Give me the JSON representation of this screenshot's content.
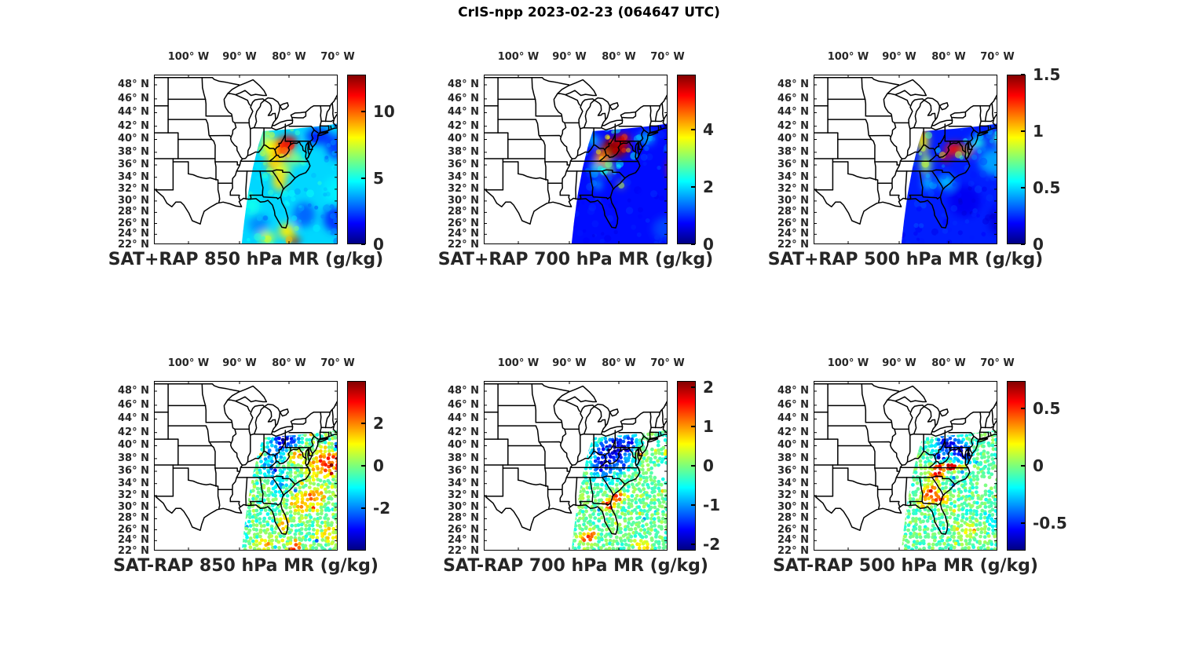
{
  "figure_title": "CrIS-npp 2023-02-23 (064647 UTC)",
  "axes_labels": {
    "lon": [
      "100° W",
      "90° W",
      "80° W",
      "70° W"
    ],
    "lat": [
      "48° N",
      "46° N",
      "44° N",
      "42° N",
      "40° N",
      "38° N",
      "36° N",
      "34° N",
      "32° N",
      "30° N",
      "28° N",
      "26° N",
      "24° N",
      "22° N"
    ],
    "lat_values": [
      48,
      46,
      44,
      42,
      40,
      38,
      36,
      34,
      32,
      30,
      28,
      26,
      24,
      22
    ]
  },
  "colors": {
    "colormap": "jet",
    "map_outline": "#000000",
    "background": "#ffffff",
    "text": "#262626"
  },
  "chart_data": [
    {
      "type": "heatmap",
      "id": "sat_plus_rap_850",
      "title": "SAT+RAP 850 hPa MR (g/kg)",
      "mode": "filled",
      "region": {
        "lon_range_w": [
          106.9,
          70.0
        ],
        "lat_range_n": [
          22,
          49.5
        ]
      },
      "colorbar": {
        "min": 0,
        "max": 12.8,
        "ticks": [
          {
            "value": 0,
            "label": "0"
          },
          {
            "value": 5,
            "label": "5"
          },
          {
            "value": 10,
            "label": "10"
          }
        ]
      },
      "field": {
        "base": 4.3,
        "noise": 1.0,
        "features": [
          [
            -81.4,
            38.6,
            2.4,
            1.7,
            10.6
          ],
          [
            -79.8,
            39.6,
            1.6,
            1.0,
            11.6
          ],
          [
            -83.9,
            38.9,
            1.5,
            1.6,
            7.8
          ],
          [
            -82.5,
            36.3,
            1.8,
            1.4,
            8.6
          ],
          [
            -80.9,
            35.2,
            1.4,
            1.2,
            7.2
          ],
          [
            -81.7,
            33.5,
            1.3,
            1.7,
            8.4
          ],
          [
            -84.8,
            40.8,
            1.2,
            0.9,
            6.2
          ],
          [
            -78.5,
            37.0,
            1.5,
            1.0,
            6.4
          ],
          [
            -73.8,
            40.5,
            2.6,
            1.4,
            2.2
          ],
          [
            -69.6,
            38.8,
            2.8,
            2.0,
            2.4
          ],
          [
            -66.2,
            35.2,
            2.2,
            2.6,
            7.8
          ],
          [
            -64.5,
            38.5,
            1.8,
            1.8,
            4.8
          ],
          [
            -70.3,
            31.8,
            2.4,
            2.2,
            4.6
          ],
          [
            -70.3,
            26.8,
            2.6,
            2.2,
            2.3
          ],
          [
            -76.7,
            27.6,
            2.2,
            2.0,
            2.9
          ],
          [
            -80.2,
            24.6,
            1.6,
            1.2,
            8.2
          ],
          [
            -78.7,
            22.8,
            1.0,
            0.8,
            12.2
          ],
          [
            -84.2,
            23.4,
            1.6,
            1.0,
            7.2
          ],
          [
            -87.2,
            29.2,
            1.6,
            1.6,
            5.0
          ],
          [
            -85.9,
            25.9,
            2.0,
            1.6,
            3.4
          ]
        ],
        "gaps": []
      }
    },
    {
      "type": "heatmap",
      "id": "sat_plus_rap_700",
      "title": "SAT+RAP 700 hPa MR (g/kg)",
      "mode": "filled",
      "region": {
        "lon_range_w": [
          106.9,
          70.0
        ],
        "lat_range_n": [
          22,
          49.5
        ]
      },
      "colorbar": {
        "min": 0,
        "max": 5.9,
        "ticks": [
          {
            "value": 0,
            "label": "0"
          },
          {
            "value": 2,
            "label": "2"
          },
          {
            "value": 4,
            "label": "4"
          }
        ]
      },
      "field": {
        "base": 0.8,
        "noise": 0.22,
        "features": [
          [
            -80.7,
            38.7,
            2.8,
            1.6,
            5.8
          ],
          [
            -79.0,
            39.9,
            1.5,
            0.9,
            5.4
          ],
          [
            -83.2,
            37.1,
            1.5,
            1.1,
            4.4
          ],
          [
            -81.9,
            35.4,
            1.1,
            0.9,
            3.0
          ],
          [
            -84.5,
            35.4,
            0.9,
            0.9,
            2.3
          ],
          [
            -85.0,
            39.9,
            0.9,
            0.9,
            2.2
          ],
          [
            -84.0,
            32.8,
            0.8,
            0.8,
            1.8
          ],
          [
            -79.4,
            32.8,
            0.55,
            0.5,
            3.4
          ],
          [
            -68.4,
            35.4,
            1.4,
            2.0,
            5.0
          ],
          [
            -66.9,
            38.0,
            1.1,
            1.3,
            2.8
          ],
          [
            -65.2,
            41.6,
            1.6,
            1.1,
            2.5
          ],
          [
            -74.2,
            40.2,
            1.6,
            1.0,
            1.7
          ],
          [
            -70.0,
            25.0,
            3.0,
            2.0,
            1.1
          ]
        ],
        "gaps": []
      }
    },
    {
      "type": "heatmap",
      "id": "sat_plus_rap_500",
      "title": "SAT+RAP 500 hPa MR (g/kg)",
      "mode": "filled",
      "region": {
        "lon_range_w": [
          106.9,
          70.0
        ],
        "lat_range_n": [
          22,
          49.5
        ]
      },
      "colorbar": {
        "min": 0,
        "max": 1.5,
        "ticks": [
          {
            "value": 0,
            "label": "0"
          },
          {
            "value": 0.5,
            "label": "0.5"
          },
          {
            "value": 1,
            "label": "1"
          },
          {
            "value": 1.5,
            "label": "1.5"
          }
        ]
      },
      "field": {
        "base": 0.23,
        "noise": 0.08,
        "features": [
          [
            -85.0,
            39.8,
            1.1,
            1.9,
            0.95
          ],
          [
            -85.5,
            41.2,
            0.9,
            0.7,
            1.1
          ],
          [
            -84.4,
            36.2,
            1.0,
            1.7,
            0.8
          ],
          [
            -84.0,
            33.0,
            0.9,
            1.1,
            0.5
          ],
          [
            -78.8,
            38.5,
            1.7,
            1.0,
            1.3
          ],
          [
            -77.4,
            38.9,
            0.9,
            0.6,
            1.45
          ],
          [
            -80.4,
            37.1,
            0.9,
            0.6,
            1.35
          ],
          [
            -76.0,
            38.1,
            1.1,
            0.7,
            1.05
          ],
          [
            -74.0,
            39.5,
            1.5,
            0.9,
            0.6
          ],
          [
            -66.4,
            40.9,
            1.3,
            0.9,
            1.25
          ],
          [
            -68.8,
            40.2,
            2.2,
            1.1,
            0.65
          ],
          [
            -70.5,
            36.5,
            3.2,
            2.2,
            0.42
          ],
          [
            -80.3,
            33.2,
            1.6,
            1.1,
            0.48
          ],
          [
            -76.5,
            30.0,
            3.2,
            2.6,
            0.17
          ],
          [
            -68.5,
            26.5,
            3.2,
            2.6,
            0.14
          ]
        ],
        "gaps": []
      }
    },
    {
      "type": "heatmap",
      "id": "sat_minus_rap_850",
      "title": "SAT-RAP 850 hPa MR (g/kg)",
      "mode": "scatter",
      "region": {
        "lon_range_w": [
          106.9,
          70.0
        ],
        "lat_range_n": [
          22,
          49.5
        ]
      },
      "colorbar": {
        "min": -4,
        "max": 4,
        "ticks": [
          {
            "value": -2,
            "label": "-2"
          },
          {
            "value": 0,
            "label": "0"
          },
          {
            "value": 2,
            "label": "2"
          }
        ]
      },
      "field": {
        "base": -0.25,
        "noise": 0.75,
        "features": [
          [
            -80.4,
            40.6,
            1.7,
            1.1,
            -3.7
          ],
          [
            -82.6,
            39.4,
            1.3,
            0.9,
            -2.4
          ],
          [
            -83.6,
            36.6,
            1.3,
            1.6,
            -1.6
          ],
          [
            -81.6,
            34.2,
            1.1,
            1.3,
            -1.4
          ],
          [
            -78.2,
            38.6,
            1.0,
            0.8,
            2.4
          ],
          [
            -72.6,
            37.2,
            2.2,
            1.6,
            2.5
          ],
          [
            -69.6,
            37.7,
            1.6,
            1.1,
            2.9
          ],
          [
            -69.9,
            39.7,
            0.6,
            0.5,
            -3.6
          ],
          [
            -74.7,
            31.7,
            1.6,
            1.3,
            2.2
          ],
          [
            -77.7,
            30.6,
            1.3,
            1.1,
            2.0
          ],
          [
            -80.8,
            27.3,
            0.7,
            0.9,
            2.6
          ],
          [
            -78.6,
            22.8,
            0.9,
            0.7,
            3.4
          ],
          [
            -84.6,
            23.1,
            1.3,
            0.9,
            1.6
          ],
          [
            -71.2,
            25.2,
            2.2,
            1.6,
            0.9
          ]
        ],
        "gaps": [
          [
            -66.6,
            42.9,
            2.6,
            1.1
          ],
          [
            -63.8,
            36.5,
            1.4,
            1.2
          ]
        ]
      }
    },
    {
      "type": "heatmap",
      "id": "sat_minus_rap_700",
      "title": "SAT-RAP 700 hPa MR (g/kg)",
      "mode": "scatter",
      "region": {
        "lon_range_w": [
          106.9,
          70.0
        ],
        "lat_range_n": [
          22,
          49.5
        ]
      },
      "colorbar": {
        "min": -2.15,
        "max": 2.15,
        "ticks": [
          {
            "value": -2,
            "label": "-2"
          },
          {
            "value": -1,
            "label": "-1"
          },
          {
            "value": 0,
            "label": "0"
          },
          {
            "value": 1,
            "label": "1"
          },
          {
            "value": 2,
            "label": "2"
          }
        ]
      },
      "field": {
        "base": -0.12,
        "noise": 0.32,
        "features": [
          [
            -80.4,
            39.4,
            2.4,
            1.4,
            -2.05
          ],
          [
            -82.9,
            37.1,
            1.4,
            1.6,
            -1.8
          ],
          [
            -79.1,
            37.1,
            1.1,
            0.9,
            -1.3
          ],
          [
            -77.8,
            40.3,
            1.0,
            0.7,
            -1.6
          ],
          [
            -65.6,
            39.6,
            2.2,
            1.6,
            -1.95
          ],
          [
            -75.5,
            38.9,
            0.6,
            0.45,
            1.2
          ],
          [
            -80.0,
            31.7,
            0.9,
            0.55,
            1.85
          ],
          [
            -81.9,
            30.3,
            0.9,
            0.55,
            1.95
          ],
          [
            -86.1,
            24.4,
            1.0,
            0.55,
            1.7
          ],
          [
            -85.1,
            25.6,
            0.7,
            0.45,
            1.3
          ],
          [
            -65.9,
            30.6,
            0.8,
            0.8,
            1.5
          ],
          [
            -64.6,
            24.1,
            1.1,
            0.7,
            1.0
          ],
          [
            -74.9,
            22.9,
            1.3,
            0.7,
            0.8
          ]
        ],
        "gaps": [
          [
            -70.3,
            35.6,
            2.8,
            1.4
          ],
          [
            -66.2,
            34.2,
            2.2,
            1.6
          ],
          [
            -72.3,
            40.5,
            1.6,
            0.9
          ],
          [
            -64.0,
            43.0,
            2.0,
            0.8
          ]
        ]
      }
    },
    {
      "type": "heatmap",
      "id": "sat_minus_rap_500",
      "title": "SAT-RAP 500 hPa MR (g/kg)",
      "mode": "scatter",
      "region": {
        "lon_range_w": [
          106.9,
          70.0
        ],
        "lat_range_n": [
          22,
          49.5
        ]
      },
      "colorbar": {
        "min": -0.74,
        "max": 0.74,
        "ticks": [
          {
            "value": -0.5,
            "label": "-0.5"
          },
          {
            "value": 0,
            "label": "0"
          },
          {
            "value": 0.5,
            "label": "0.5"
          }
        ]
      },
      "field": {
        "base": -0.05,
        "noise": 0.11,
        "features": [
          [
            -79.9,
            40.3,
            1.6,
            1.0,
            -0.62
          ],
          [
            -77.0,
            38.9,
            1.3,
            1.0,
            -0.68
          ],
          [
            -81.6,
            38.1,
            0.9,
            0.7,
            -0.5
          ],
          [
            -64.9,
            39.6,
            2.0,
            1.4,
            -0.62
          ],
          [
            -79.9,
            36.7,
            2.0,
            0.4,
            0.74
          ],
          [
            -82.1,
            35.4,
            0.9,
            0.7,
            0.62
          ],
          [
            -83.4,
            32.4,
            1.1,
            0.9,
            0.57
          ],
          [
            -81.4,
            31.4,
            1.1,
            0.6,
            0.52
          ],
          [
            -84.6,
            30.6,
            0.7,
            0.5,
            0.38
          ],
          [
            -75.4,
            25.8,
            2.2,
            1.1,
            0.13
          ],
          [
            -70.3,
            28.2,
            2.2,
            1.6,
            -0.14
          ]
        ],
        "gaps": [
          [
            -72.6,
            33.9,
            1.8,
            1.1
          ],
          [
            -69.6,
            34.9,
            1.7,
            1.0
          ],
          [
            -66.6,
            36.1,
            1.7,
            1.1
          ],
          [
            -75.6,
            36.4,
            0.9,
            0.7
          ],
          [
            -63.6,
            42.6,
            1.6,
            0.9
          ]
        ]
      }
    }
  ]
}
